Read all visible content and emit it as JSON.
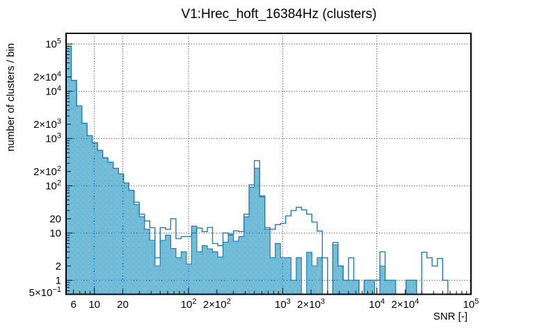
{
  "title": "V1:Hrec_hoft_16384Hz (clusters)",
  "axes": {
    "x": {
      "label": "SNR [-]",
      "scale": "log",
      "min": 5,
      "max": 100000,
      "tick_labels": [
        {
          "text": "6",
          "value": 6
        },
        {
          "text": "10",
          "value": 10
        },
        {
          "text": "20",
          "value": 20
        },
        {
          "text": "10^2",
          "value": 100
        },
        {
          "text": "2×10^2",
          "value": 200
        },
        {
          "text": "10^3",
          "value": 1000
        },
        {
          "text": "2×10^3",
          "value": 2000
        },
        {
          "text": "10^4",
          "value": 10000
        },
        {
          "text": "2×10^4",
          "value": 20000
        },
        {
          "text": "10^5",
          "value": 100000
        }
      ],
      "grid_values": [
        10,
        20,
        100,
        1000,
        10000
      ]
    },
    "y": {
      "label": "number of clusters / bin",
      "scale": "log",
      "min": 0.5,
      "max": 170000,
      "tick_labels": [
        {
          "text": "5×10^−1",
          "value": 0.5
        },
        {
          "text": "1",
          "value": 1
        },
        {
          "text": "2",
          "value": 2
        },
        {
          "text": "10",
          "value": 10
        },
        {
          "text": "20",
          "value": 20
        },
        {
          "text": "10^2",
          "value": 100
        },
        {
          "text": "2×10^2",
          "value": 200
        },
        {
          "text": "10^3",
          "value": 1000
        },
        {
          "text": "2×10^3",
          "value": 2000
        },
        {
          "text": "10^4",
          "value": 10000
        },
        {
          "text": "2×10^4",
          "value": 20000
        },
        {
          "text": "10^5",
          "value": 100000
        }
      ],
      "grid_values": [
        1,
        10,
        100,
        1000,
        10000,
        100000
      ]
    }
  },
  "chart_data": {
    "type": "histogram",
    "x_scale": "log",
    "y_scale": "log",
    "grid": true,
    "bins": {
      "snr_start": 5,
      "bins_per_decade": 18,
      "count": 78
    },
    "color": "#2579ad",
    "fill_style": "hatched-dots",
    "series": [
      {
        "name": "clusters-filled",
        "style": "hatched-fill",
        "values": [
          90000,
          17000,
          4900,
          2100,
          1150,
          810,
          560,
          390,
          316,
          233,
          178,
          114,
          80,
          40,
          22,
          12,
          7,
          2,
          7,
          9,
          4.7,
          3,
          4,
          2.2,
          14,
          4,
          5.4,
          4.6,
          4,
          3.1,
          6.4,
          9,
          6.7,
          8.4,
          22,
          93,
          235,
          58,
          12,
          3,
          6,
          3,
          3,
          1,
          3,
          0,
          3.9,
          2,
          3,
          0,
          0,
          5.6,
          2,
          1,
          1,
          1,
          0,
          1,
          1,
          0,
          2,
          1,
          1,
          0,
          0,
          1,
          1,
          0,
          0,
          0,
          0,
          0,
          0,
          0,
          0,
          0,
          0,
          0
        ]
      },
      {
        "name": "clusters-outline",
        "style": "line",
        "values": [
          90000,
          17000,
          4900,
          2100,
          1150,
          810,
          560,
          390,
          316,
          233,
          178,
          114,
          80,
          45,
          25,
          18,
          13,
          3,
          13,
          12,
          20,
          7.6,
          8.4,
          8.4,
          10,
          12.7,
          10.7,
          13.1,
          6,
          5.4,
          10,
          9.4,
          11.1,
          10.7,
          25,
          105,
          340,
          61,
          13,
          12,
          15,
          16,
          23,
          30,
          35,
          31,
          25,
          17,
          11,
          3,
          0,
          6.3,
          2,
          1,
          3,
          1,
          0,
          1,
          1,
          1,
          4,
          1,
          1,
          0,
          0,
          1,
          1,
          0,
          3.9,
          3,
          2,
          2.9,
          1,
          0,
          0,
          0,
          0,
          0
        ]
      }
    ]
  }
}
